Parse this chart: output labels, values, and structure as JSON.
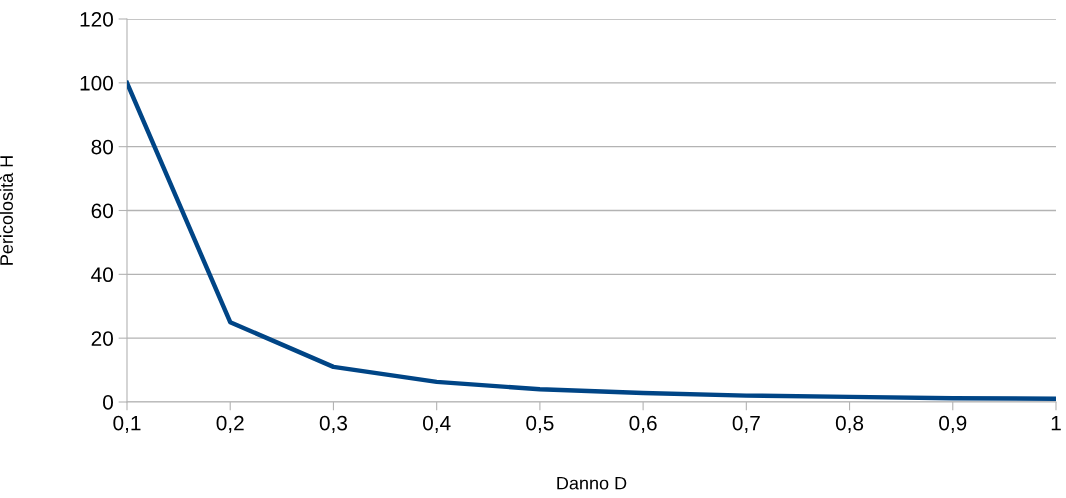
{
  "chart_data": {
    "type": "line",
    "xlabel": "Danno D",
    "ylabel": "Pericolosità H",
    "x": [
      0.1,
      0.2,
      0.3,
      0.4,
      0.5,
      0.6,
      0.7,
      0.8,
      0.9,
      1
    ],
    "series": [
      {
        "color": "#004586",
        "values": [
          100,
          25,
          11,
          6.3,
          4,
          2.8,
          2,
          1.6,
          1.2,
          1
        ]
      }
    ],
    "xlim": [
      0.1,
      1
    ],
    "xticks": [
      {
        "value": 0.1,
        "label": "0,1"
      },
      {
        "value": 0.2,
        "label": "0,2"
      },
      {
        "value": 0.3,
        "label": "0,3"
      },
      {
        "value": 0.4,
        "label": "0,4"
      },
      {
        "value": 0.5,
        "label": "0,5"
      },
      {
        "value": 0.6,
        "label": "0,6"
      },
      {
        "value": 0.7,
        "label": "0,7"
      },
      {
        "value": 0.8,
        "label": "0,8"
      },
      {
        "value": 0.9,
        "label": "0,9"
      },
      1
    ],
    "ylim": [
      0,
      120
    ],
    "yticks": [
      0,
      20,
      40,
      60,
      80,
      100,
      120
    ],
    "grid": "y",
    "legend": false,
    "marker": "none",
    "line_style": "solid"
  }
}
